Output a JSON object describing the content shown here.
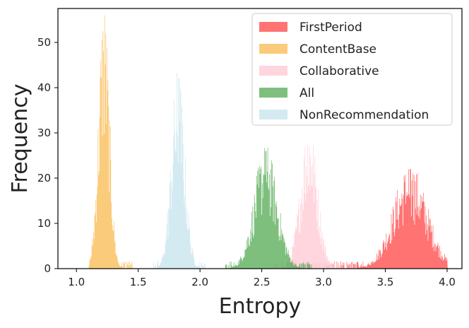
{
  "chart_data": {
    "type": "histogram",
    "xlabel": "Entropy",
    "ylabel": "Frequency",
    "xlim": [
      0.85,
      4.12
    ],
    "ylim": [
      0,
      57.5
    ],
    "xticks": [
      "1.0",
      "1.5",
      "2.0",
      "2.5",
      "3.0",
      "3.5",
      "4.0"
    ],
    "yticks": [
      "0",
      "10",
      "20",
      "30",
      "40",
      "50"
    ],
    "grid": false,
    "legend_position": "top-right",
    "series": [
      {
        "name": "FirstPeriod",
        "color": "#ff5a5a",
        "opacity": 0.85,
        "center": 3.7,
        "spread": 0.14,
        "range": [
          2.7,
          4.0
        ],
        "peak": 22
      },
      {
        "name": "ContentBase",
        "color": "#fbc46a",
        "opacity": 0.88,
        "center": 1.22,
        "spread": 0.045,
        "range": [
          1.1,
          1.45
        ],
        "peak": 56
      },
      {
        "name": "Collaborative",
        "color": "#ffcfd8",
        "opacity": 0.85,
        "center": 2.88,
        "spread": 0.07,
        "range": [
          2.6,
          3.17
        ],
        "peak": 31
      },
      {
        "name": "All",
        "color": "#4ca64c",
        "opacity": 0.72,
        "center": 2.53,
        "spread": 0.095,
        "range": [
          2.2,
          2.9
        ],
        "peak": 26
      },
      {
        "name": "NonRecommendation",
        "color": "#cce6ef",
        "opacity": 0.85,
        "center": 1.82,
        "spread": 0.055,
        "range": [
          1.6,
          2.05
        ],
        "peak": 42
      }
    ]
  }
}
